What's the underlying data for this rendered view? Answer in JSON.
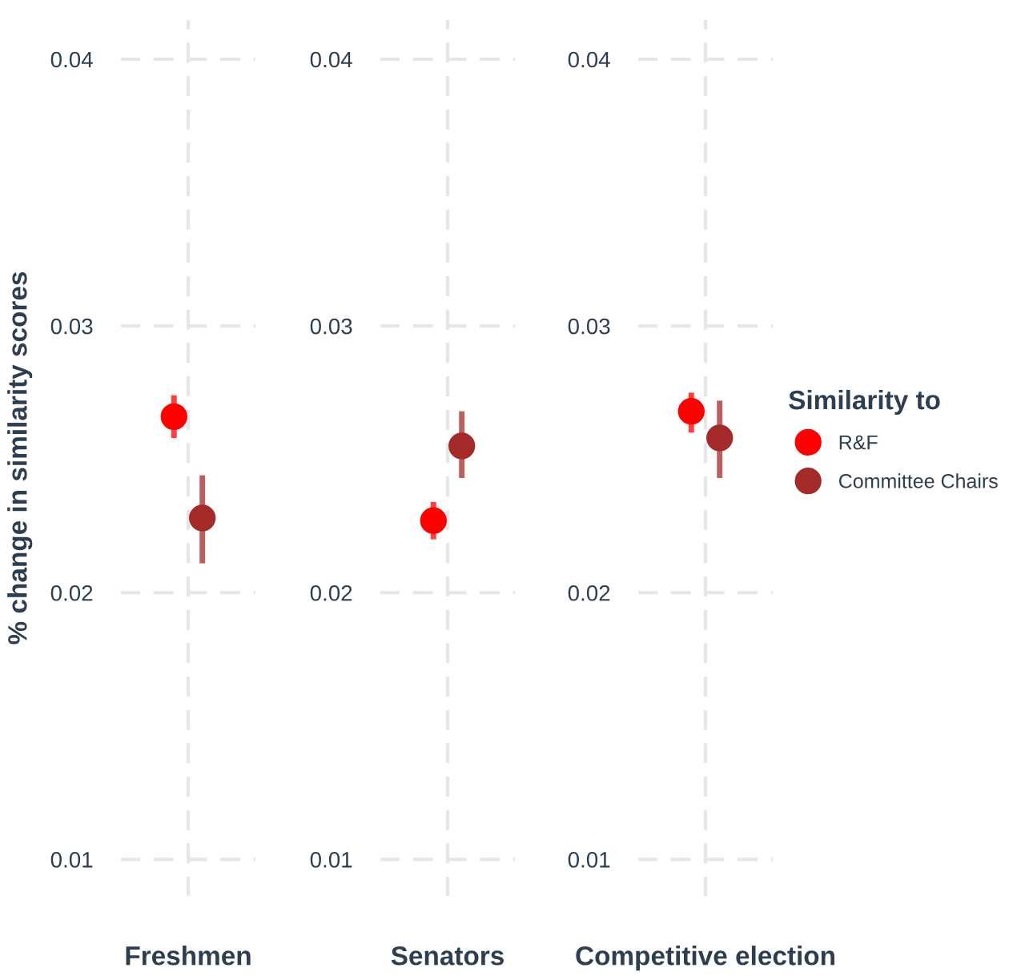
{
  "chart_data": [
    {
      "type": "scatter",
      "ylabel": "% change in similarity scores",
      "legend_title": "Similarity to",
      "legend": "right",
      "categories": [
        "Freshmen"
      ],
      "ylim": [
        0.0086,
        0.0415
      ],
      "yticks": [
        0.01,
        0.02,
        0.03,
        0.04
      ],
      "grid": true,
      "marker": "circle",
      "series": [
        {
          "name": "R&F",
          "color": "#ff0000",
          "values": [
            0.0266
          ],
          "errors": [
            [
              0.0258,
              0.0274
            ]
          ]
        },
        {
          "name": "Committee Chairs",
          "color": "#a52a2a",
          "values": [
            0.0228
          ],
          "errors": [
            [
              0.0211,
              0.0244
            ]
          ]
        }
      ]
    },
    {
      "type": "scatter",
      "categories": [
        "Senators"
      ],
      "ylim": [
        0.0086,
        0.0415
      ],
      "yticks": [
        0.01,
        0.02,
        0.03,
        0.04
      ],
      "grid": true,
      "marker": "circle",
      "series": [
        {
          "color": "#ff0000",
          "values": [
            0.0227
          ],
          "errors": [
            [
              0.022,
              0.0234
            ]
          ]
        },
        {
          "color": "#a52a2a",
          "values": [
            0.0255
          ],
          "errors": [
            [
              0.0243,
              0.0268
            ]
          ]
        }
      ]
    },
    {
      "type": "scatter",
      "categories": [
        "Competitive election"
      ],
      "ylim": [
        0.0086,
        0.0415
      ],
      "yticks": [
        0.01,
        0.02,
        0.03,
        0.04
      ],
      "grid": true,
      "marker": "circle",
      "series": [
        {
          "color": "#ff0000",
          "values": [
            0.0268
          ],
          "errors": [
            [
              0.026,
              0.0275
            ]
          ]
        },
        {
          "color": "#a52a2a",
          "values": [
            0.0258
          ],
          "errors": [
            [
              0.0243,
              0.0272
            ]
          ]
        }
      ]
    }
  ]
}
